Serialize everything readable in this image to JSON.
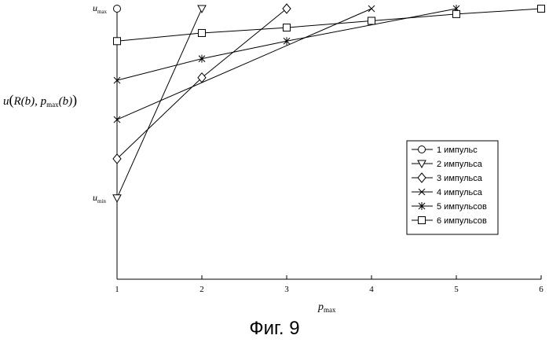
{
  "chart_data": {
    "type": "line",
    "x": [
      1,
      2,
      3,
      4,
      5,
      6
    ],
    "xlim": [
      1,
      6
    ],
    "ylim": [
      0,
      1
    ],
    "xlabel": "p",
    "xlabel_sub": "max",
    "ylabel": "u(R(b), p_max(b))",
    "ylabel_parts": {
      "u": "u",
      "paren_open": "(",
      "r": "R",
      "b1": "(b)",
      "comma": ", p",
      "sub": "max",
      "b2": "(b)",
      "paren_close": ")"
    },
    "y_tick_labels": [
      {
        "label": "u",
        "sub": "max",
        "value": 1.0
      },
      {
        "label": "u",
        "sub": "min",
        "value": 0.3
      }
    ],
    "x_tick_labels": [
      "1",
      "2",
      "3",
      "4",
      "5",
      "6"
    ],
    "grid": false,
    "legend_position": "right-middle",
    "series": [
      {
        "name": "1 импульс",
        "marker": "circle",
        "x": [
          1
        ],
        "y": [
          1.0
        ]
      },
      {
        "name": "2 импульса",
        "marker": "triangle-down",
        "x": [
          1,
          2
        ],
        "y": [
          0.3,
          1.0
        ]
      },
      {
        "name": "3 импульса",
        "marker": "diamond",
        "x": [
          1,
          2,
          3
        ],
        "y": [
          0.445,
          0.745,
          1.0
        ]
      },
      {
        "name": "4 импульса",
        "marker": "x",
        "x": [
          1,
          4
        ],
        "y": [
          0.59,
          1.0
        ]
      },
      {
        "name": "5 импульсов",
        "marker": "asterisk",
        "x": [
          1,
          2,
          3,
          5
        ],
        "y": [
          0.735,
          0.815,
          0.88,
          1.0
        ]
      },
      {
        "name": "6 импульсов",
        "marker": "square",
        "x": [
          1,
          2,
          3,
          4,
          5,
          6
        ],
        "y": [
          0.88,
          0.91,
          0.93,
          0.955,
          0.98,
          1.0
        ]
      }
    ]
  },
  "caption": "Фиг. 9"
}
